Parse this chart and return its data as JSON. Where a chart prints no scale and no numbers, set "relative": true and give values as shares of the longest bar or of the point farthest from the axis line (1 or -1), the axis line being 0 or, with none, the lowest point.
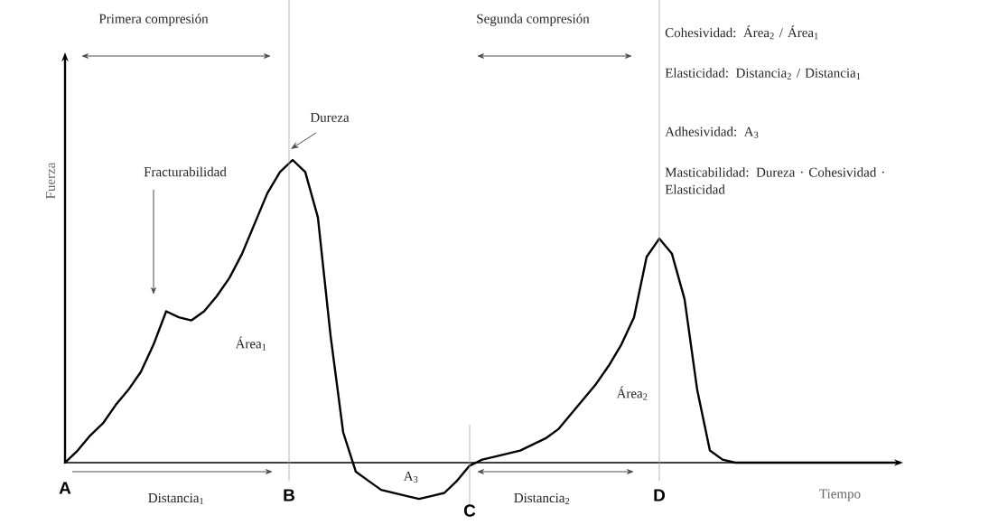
{
  "chart_data": {
    "type": "line",
    "relative": true,
    "xlabel": "Tiempo",
    "ylabel": "Fuerza",
    "categories": [
      null,
      null,
      null,
      null,
      null,
      null,
      null,
      null,
      null,
      null,
      null,
      null,
      null,
      null,
      null,
      null,
      null,
      null,
      null,
      null,
      null,
      null,
      null,
      null,
      null,
      null,
      null,
      null,
      null,
      null,
      null,
      null,
      null,
      null,
      null,
      null,
      null,
      null,
      null,
      null,
      null,
      null,
      null,
      null,
      null,
      null,
      null,
      null,
      null,
      null,
      null,
      null,
      null,
      null,
      null,
      null,
      null,
      null,
      null,
      null,
      null,
      null,
      null,
      null,
      null,
      null,
      null
    ],
    "series": [
      {
        "color": "#000000",
        "values": [
          0,
          0.04,
          0.09,
          0.13,
          0.19,
          0.24,
          0.3,
          0.39,
          0.5,
          0.48,
          0.47,
          0.5,
          0.55,
          0.61,
          0.69,
          0.79,
          0.89,
          0.96,
          1,
          0.96,
          0.81,
          0.42,
          0.1,
          -0.03,
          -0.06,
          -0.09,
          -0.1,
          -0.11,
          -0.12,
          -0.11,
          -0.1,
          -0.06,
          -0.01,
          0.01,
          0.02,
          0.03,
          0.04,
          0.06,
          0.08,
          0.11,
          0.16,
          0.21,
          0.26,
          0.32,
          0.39,
          0.48,
          0.68,
          0.74,
          0.69,
          0.54,
          0.24,
          0.04,
          0.01,
          0,
          0,
          0,
          0,
          0,
          0,
          0,
          0,
          0,
          0,
          0,
          0,
          0,
          0
        ]
      }
    ],
    "annotations": [
      "Primera compresión",
      "Segunda compresión",
      "Dureza",
      "Fracturabilidad",
      "Área$_{1}$",
      "Área$_{2}$",
      "A$_{3}$",
      "Distancia$_{1}$",
      "Distancia$_{2}$",
      "A",
      "Cohesividad: Área$_{2}$ / Área$_{1}$",
      "Elasticidad: Distancia$_{2}$ / Distancia$_{1}$",
      "Adhesividad: A$_{3}$",
      "Masticabilidad: Dureza · Cohesividad · Elasticidad",
      "B",
      "C",
      "D"
    ]
  }
}
